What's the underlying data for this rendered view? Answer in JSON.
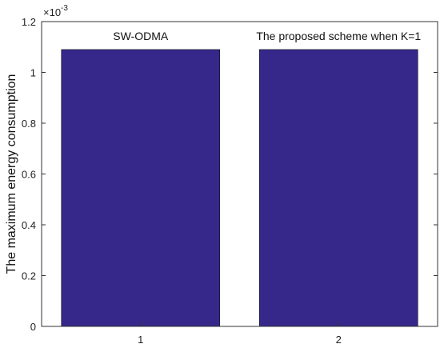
{
  "chart_data": {
    "type": "bar",
    "categories": [
      "1",
      "2"
    ],
    "values": [
      0.00109,
      0.00109
    ],
    "bar_labels": [
      "SW-ODMA",
      "The proposed scheme when K=1"
    ],
    "xlabel": "",
    "ylabel": "The maximum energy consumption",
    "ylim": [
      0,
      0.0012
    ],
    "yticks": [
      0,
      0.2,
      0.4,
      0.6,
      0.8,
      1,
      1.2
    ],
    "y_multiplier": "10",
    "y_exponent": "-3",
    "bar_color": "#35288a",
    "grid": false,
    "box": true
  }
}
